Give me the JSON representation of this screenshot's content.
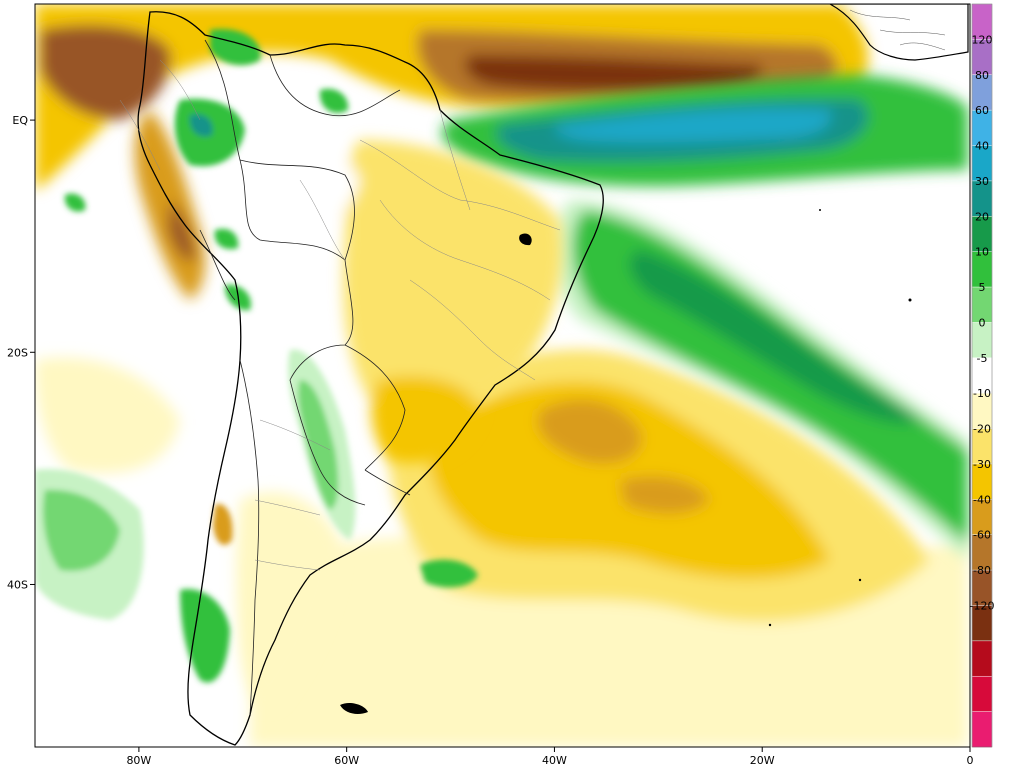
{
  "map": {
    "lon_range": [
      -90,
      0
    ],
    "lat_range": [
      -54,
      10
    ],
    "x_ticks": [
      {
        "lon": -80,
        "label": "80W"
      },
      {
        "lon": -60,
        "label": "60W"
      },
      {
        "lon": -40,
        "label": "40W"
      },
      {
        "lon": -20,
        "label": "20W"
      },
      {
        "lon": 0,
        "label": "0"
      }
    ],
    "y_ticks": [
      {
        "lat": 0,
        "label": "EQ"
      },
      {
        "lat": -20,
        "label": "20S"
      },
      {
        "lat": -40,
        "label": "40S"
      }
    ]
  },
  "colorbar": {
    "bins": [
      {
        "label": "120",
        "color": "#a86fc6"
      },
      {
        "label": "80",
        "color": "#7fa0dc"
      },
      {
        "label": "60",
        "color": "#3fb2e6"
      },
      {
        "label": "40",
        "color": "#1aa7c8"
      },
      {
        "label": "30",
        "color": "#14938a"
      },
      {
        "label": "20",
        "color": "#179a4a"
      },
      {
        "label": "10",
        "color": "#31c03c"
      },
      {
        "label": "5",
        "color": "#73d772"
      },
      {
        "label": "0",
        "color": "#c7f2c4"
      },
      {
        "label": "-5",
        "color": "#ffffff"
      },
      {
        "label": "-10",
        "color": "#fff8c2"
      },
      {
        "label": "-20",
        "color": "#fbe36a"
      },
      {
        "label": "-30",
        "color": "#f4c500"
      },
      {
        "label": "-40",
        "color": "#d99c1c"
      },
      {
        "label": "-60",
        "color": "#b5762a"
      },
      {
        "label": "-80",
        "color": "#985428"
      },
      {
        "label": "-120",
        "color": "#7a3011"
      }
    ],
    "top_color": "#c863c8",
    "extra_colors": [
      "#b50b1c",
      "#d70a3a",
      "#ea1c70"
    ]
  }
}
